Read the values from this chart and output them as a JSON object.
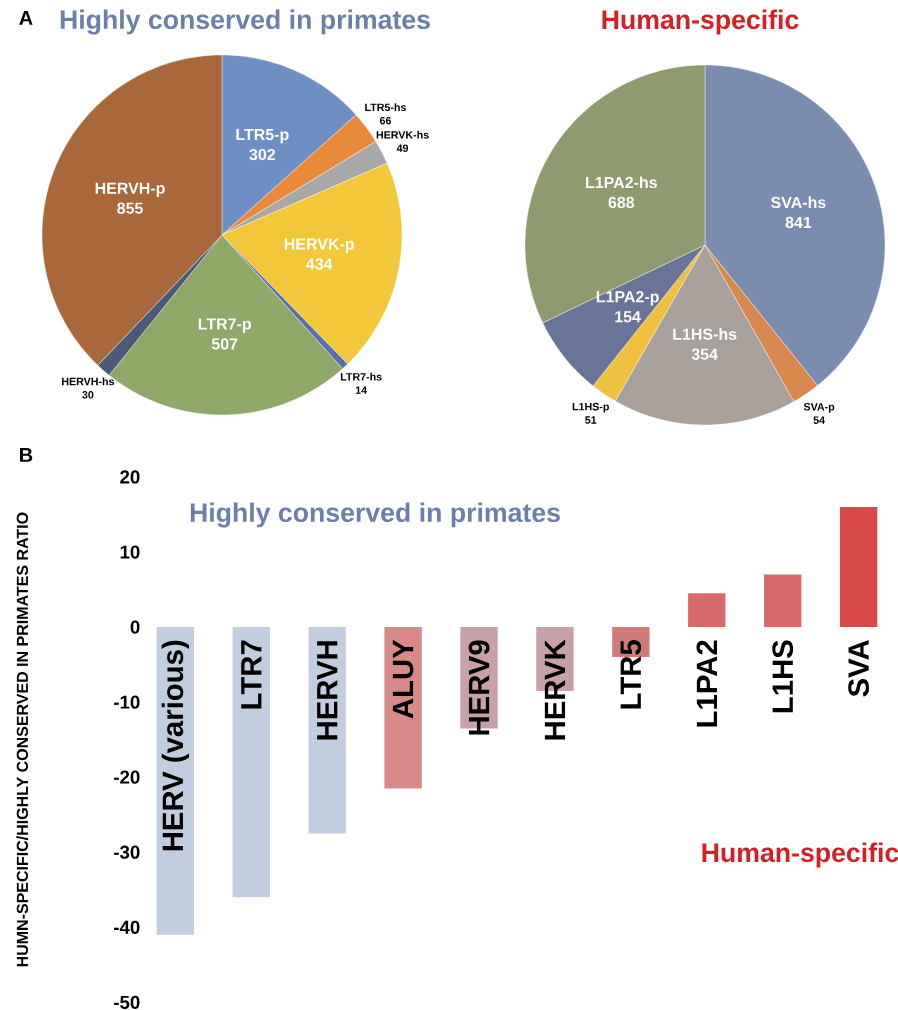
{
  "chart_data": [
    {
      "type": "pie",
      "title": "Highly conserved in primates",
      "annotations": [
        "A"
      ],
      "data_labels": true,
      "categories": [
        "LTR5-p",
        "LTR5-hs",
        "HERVK-hs",
        "HERVK-p",
        "LTR7-hs",
        "LTR7-p",
        "HERVH-hs",
        "HERVH-p"
      ],
      "values": [
        302,
        66,
        49,
        434,
        14,
        507,
        30,
        855
      ],
      "colors": [
        "#6e8fc4",
        "#e8893a",
        "#a8a8a8",
        "#f2c83a",
        "#5a6fa8",
        "#8fa868",
        "#4a5a78",
        "#a8683a"
      ]
    },
    {
      "type": "pie",
      "title": "Human-specific",
      "data_labels": true,
      "categories": [
        "SVA-hs",
        "SVA-p",
        "L1HS-hs",
        "L1HS-p",
        "L1PA2-p",
        "L1PA2-hs"
      ],
      "values": [
        841,
        54,
        354,
        51,
        154,
        688
      ],
      "colors": [
        "#7a8cb0",
        "#d8884a",
        "#a8a09a",
        "#f0c040",
        "#6a7398",
        "#8f9a6e"
      ]
    },
    {
      "type": "bar",
      "ylabel": "HUMN-SPECIFIC/HIGHLY CONSERVED IN PRIMATES RATIO",
      "annotations": [
        "B",
        "Highly conserved in primates",
        "Human-specific"
      ],
      "categories": [
        "HERV (various)",
        "LTR7",
        "HERVH",
        "ALUY",
        "HERV9",
        "HERVK",
        "LTR5",
        "L1PA2",
        "L1HS",
        "SVA"
      ],
      "values": [
        -41,
        -36,
        -27.5,
        -21.5,
        -13.5,
        -8.5,
        -4,
        4.5,
        7,
        16
      ],
      "colors": [
        "#c3cde0",
        "#c3cde0",
        "#c3cde0",
        "#d88a8a",
        "#c8a0a8",
        "#c8a0a8",
        "#d07a7a",
        "#d86a6a",
        "#d86a6a",
        "#d84a4a"
      ],
      "ylim": [
        -50,
        20
      ],
      "yticks": [
        -50,
        -40,
        -30,
        -20,
        -10,
        0,
        10,
        20
      ]
    }
  ]
}
